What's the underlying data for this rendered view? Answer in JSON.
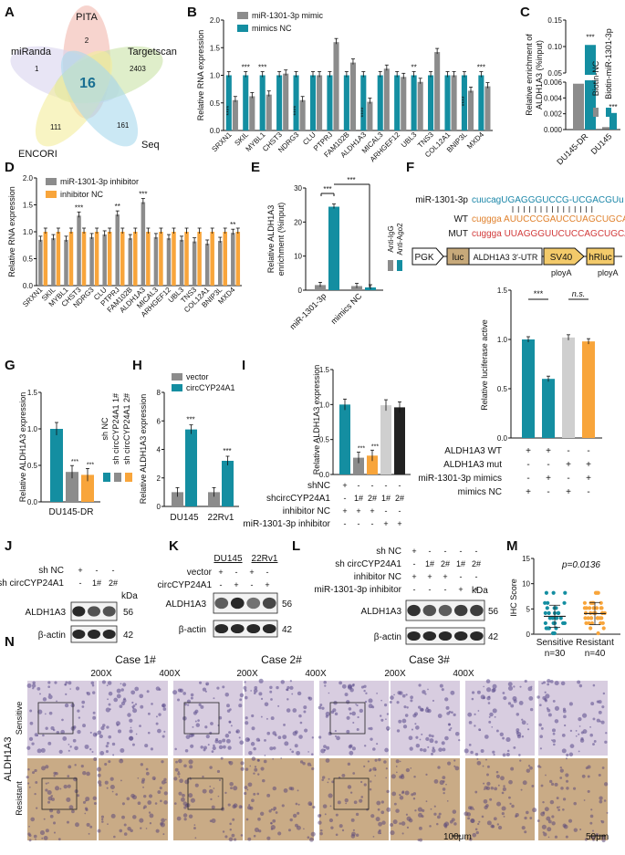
{
  "panels": {
    "A": "A",
    "B": "B",
    "C": "C",
    "D": "D",
    "E": "E",
    "F": "F",
    "G": "G",
    "H": "H",
    "I": "I",
    "J": "J",
    "K": "K",
    "L": "L",
    "M": "M",
    "N": "N"
  },
  "colors": {
    "gray": "#8c8c8c",
    "teal": "#148ea1",
    "orange": "#f8a53b",
    "lightgray": "#cfcfcf",
    "pink": "#e9c1c6",
    "venn_pita": "#f2b8ae",
    "venn_miranda": "#d9d4ee",
    "venn_targetscan": "#c9e3a6",
    "venn_encori": "#f4ec9b",
    "venn_seq": "#a8d9ec"
  },
  "venn": {
    "sets": [
      "PITA",
      "miRanda",
      "Targetscan",
      "ENCORI",
      "Seq"
    ],
    "counts": {
      "pita_only": "2",
      "miranda_only": "1",
      "targetscan_only": "2403",
      "encori_only": "111",
      "seq_only": "161",
      "center": "16"
    }
  },
  "chart_data": [
    {
      "id": "B",
      "type": "bar",
      "ylabel": "Relative RNA expression",
      "ylim": [
        0,
        2.0
      ],
      "yticks": [
        "0.0",
        "0.5",
        "1.0",
        "1.5",
        "2.0"
      ],
      "categories": [
        "SRXN1",
        "SKIL",
        "MYBL1",
        "CHST3",
        "NDRG3",
        "CLU",
        "PTPRJ",
        "FAM102B",
        "ALDH1A3",
        "MICAL3",
        "ARHGEF12",
        "UBL3",
        "TNS3",
        "COL12A1",
        "BNIP3L",
        "MXD4"
      ],
      "series": [
        {
          "name": "mimics NC",
          "values": [
            1,
            1,
            1,
            1,
            1,
            1,
            1,
            1,
            1,
            1,
            1,
            1,
            1,
            1,
            1,
            1
          ]
        },
        {
          "name": "miR-1301-3p mimic",
          "values": [
            0.55,
            0.62,
            0.65,
            1.03,
            0.55,
            1.0,
            1.6,
            1.23,
            0.52,
            1.12,
            0.97,
            0.88,
            1.42,
            1.0,
            0.72,
            0.8
          ]
        }
      ],
      "sig": [
        "****",
        "***",
        "***",
        "",
        "****",
        "",
        "",
        "",
        "****",
        "",
        "",
        "**",
        "",
        "",
        "****",
        "***"
      ]
    },
    {
      "id": "C",
      "type": "bar",
      "ylabel": "Relative enrichment of ALDH1A3 (%input)",
      "yticks": [
        "0.000",
        "0.002",
        "0.004",
        "0.006",
        "0.05",
        "0.10",
        "0.15"
      ],
      "categories": [
        "DU145-DR",
        "DU145"
      ],
      "series": [
        {
          "name": "Biotin-NC",
          "values": [
            0.0058,
            0.0002
          ]
        },
        {
          "name": "Biotin-miR-1301-3p",
          "values": [
            0.103,
            0.0021
          ]
        }
      ],
      "sig": [
        "***",
        "***"
      ]
    },
    {
      "id": "D",
      "type": "bar",
      "ylabel": "Relative RNA expression",
      "ylim": [
        0,
        2.0
      ],
      "yticks": [
        "0.0",
        "0.5",
        "1.0",
        "1.5",
        "2.0"
      ],
      "categories": [
        "SRXN1",
        "SKIL",
        "MYBL1",
        "CHST3",
        "NDRG3",
        "CLU",
        "PTPRJ",
        "FAM102B",
        "ALDH1A3",
        "MICAL3",
        "ARHGEF12",
        "UBL3",
        "TNS3",
        "COL12A1",
        "BNIP3L",
        "MXD4"
      ],
      "series": [
        {
          "name": "inhibitor NC",
          "values": [
            1,
            1,
            1,
            1,
            1,
            1,
            1,
            1,
            1,
            1,
            1,
            1,
            1,
            1,
            1,
            1
          ]
        },
        {
          "name": "miR-1301-3p inhibitor",
          "values": [
            0.85,
            0.88,
            0.85,
            1.3,
            0.9,
            0.95,
            1.32,
            0.88,
            1.55,
            0.9,
            0.88,
            0.85,
            0.82,
            0.78,
            0.83,
            0.98
          ]
        }
      ],
      "sig": [
        "",
        "",
        "",
        "***",
        "",
        "",
        "**",
        "",
        "***",
        "",
        "",
        "",
        "",
        "",
        "",
        "**"
      ]
    },
    {
      "id": "E",
      "type": "bar",
      "ylabel": "Relative ALDH1A3 enrichment (%input)",
      "ylim": [
        0,
        30
      ],
      "yticks": [
        "0",
        "10",
        "20",
        "30"
      ],
      "categories": [
        "miR-1301-3p",
        "mimics NC"
      ],
      "series": [
        {
          "name": "Anti-IgG",
          "values": [
            1.5,
            1.2
          ]
        },
        {
          "name": "Anti-Ago2",
          "values": [
            24.5,
            0.8
          ]
        }
      ],
      "sig": [
        "***",
        "***"
      ]
    },
    {
      "id": "F",
      "type": "bar",
      "ylabel": "Relative luciferase active",
      "ylim": [
        0,
        1.5
      ],
      "yticks": [
        "0.0",
        "0.5",
        "1.0",
        "1.5"
      ],
      "values": [
        1.0,
        0.6,
        1.02,
        0.98
      ],
      "sig": [
        "***",
        "n.s."
      ],
      "rows": [
        {
          "label": "ALDH1A3 WT",
          "marks": [
            "+",
            "+",
            "-",
            "-"
          ]
        },
        {
          "label": "ALDH1A3 mut",
          "marks": [
            "-",
            "-",
            "+",
            "+"
          ]
        },
        {
          "label": "miR-1301-3p mimics",
          "marks": [
            "-",
            "+",
            "-",
            "+"
          ]
        },
        {
          "label": "mimics NC",
          "marks": [
            "+",
            "-",
            "+",
            "-"
          ]
        }
      ]
    },
    {
      "id": "G",
      "type": "bar",
      "ylabel": "Relative ALDH1A3 expression",
      "ylim": [
        0,
        1.5
      ],
      "yticks": [
        "0.0",
        "0.5",
        "1.0",
        "1.5"
      ],
      "categories": [
        "DU145-DR"
      ],
      "series": [
        {
          "name": "sh NC",
          "values": [
            1.0
          ]
        },
        {
          "name": "sh circCYP24A1 1#",
          "values": [
            0.41
          ]
        },
        {
          "name": "sh circCYP24A1 2#",
          "values": [
            0.37
          ]
        }
      ],
      "sig": [
        "",
        "***",
        "***"
      ]
    },
    {
      "id": "H",
      "type": "bar",
      "ylabel": "Relative ALDH1A3 expression",
      "ylim": [
        0,
        8
      ],
      "yticks": [
        "0",
        "2",
        "4",
        "6",
        "8"
      ],
      "categories": [
        "DU145",
        "22Rv1"
      ],
      "series": [
        {
          "name": "vector",
          "values": [
            1.0,
            1.0
          ]
        },
        {
          "name": "circCYP24A1",
          "values": [
            5.4,
            3.2
          ]
        }
      ],
      "sig": [
        "***",
        "***"
      ]
    },
    {
      "id": "I",
      "type": "bar",
      "ylabel": "Relative ALDH1A3 expression",
      "ylim": [
        0,
        1.5
      ],
      "yticks": [
        "0.0",
        "0.5",
        "1.0",
        "1.5"
      ],
      "values": [
        1.0,
        0.24,
        0.27,
        0.99,
        0.96
      ],
      "sig": [
        "",
        "***",
        "***",
        "",
        ""
      ],
      "rows": [
        {
          "label": "shNC",
          "marks": [
            "+",
            "-",
            "-",
            "-",
            "-"
          ]
        },
        {
          "label": "shcircCYP24A1",
          "marks": [
            "-",
            "1#",
            "2#",
            "1#",
            "2#"
          ]
        },
        {
          "label": "inhibitor NC",
          "marks": [
            "+",
            "+",
            "+",
            "-",
            "-"
          ]
        },
        {
          "label": "miR-1301-3p inhibitor",
          "marks": [
            "-",
            "-",
            "-",
            "+",
            "+"
          ]
        }
      ]
    },
    {
      "id": "M",
      "type": "scatter",
      "ylabel": "IHC Score",
      "ylim": [
        0,
        15
      ],
      "yticks": [
        "0",
        "5",
        "10",
        "15"
      ],
      "pvalue": "p=0.0136",
      "categories": [
        "Sensitive",
        "Resistant"
      ],
      "ns": [
        "n=30",
        "n=40"
      ]
    }
  ],
  "seq": {
    "mir_label": "miR-1301-3p",
    "wt_label": "WT",
    "mut_label": "MUT",
    "mir_seq": "cuucagUGAGGGUCCG-UCGACGUu",
    "wt_seq": "cuggga AUUCCCGAUCCUAGCUGCA ga",
    "mut_seq": "cuggga UUAGGGUUCUCCAGCUGCA ga",
    "construct": [
      "PGK",
      "luc",
      "ALDH1A3 3′-UTR",
      "SV40",
      "hRluc"
    ],
    "polyA": "ployA"
  },
  "blots": {
    "J": {
      "rows": [
        {
          "label": "sh NC",
          "marks": [
            "+",
            "-",
            "-"
          ]
        },
        {
          "label": "sh circCYP24A1",
          "marks": [
            "-",
            "1#",
            "2#"
          ]
        }
      ],
      "bands": [
        {
          "name": "ALDH1A3",
          "kda": "56"
        },
        {
          "name": "β-actin",
          "kda": "42"
        }
      ],
      "kda": "kDa"
    },
    "K": {
      "lines": [
        "DU145",
        "22Rv1"
      ],
      "rows": [
        {
          "label": "vector",
          "marks": [
            "+",
            "-",
            "+",
            "-"
          ]
        },
        {
          "label": "circCYP24A1",
          "marks": [
            "-",
            "+",
            "-",
            "+"
          ]
        }
      ],
      "bands": [
        {
          "name": "ALDH1A3",
          "kda": "56"
        },
        {
          "name": "β-actin",
          "kda": "42"
        }
      ],
      "kda": "kDa"
    },
    "L": {
      "rows": [
        {
          "label": "sh NC",
          "marks": [
            "+",
            "-",
            "-",
            "-",
            "-"
          ]
        },
        {
          "label": "sh circCYP24A1",
          "marks": [
            "-",
            "1#",
            "2#",
            "1#",
            "2#"
          ]
        },
        {
          "label": "inhibitor NC",
          "marks": [
            "+",
            "+",
            "+",
            "-",
            "-"
          ]
        },
        {
          "label": "miR-1301-3p inhibitor",
          "marks": [
            "-",
            "-",
            "-",
            "+",
            "+"
          ]
        }
      ],
      "bands": [
        {
          "name": "ALDH1A3",
          "kda": "56"
        },
        {
          "name": "β-actin",
          "kda": "42"
        }
      ],
      "kda": "kDa"
    }
  },
  "histology": {
    "cases": [
      "Case 1#",
      "Case 2#",
      "Case 3#"
    ],
    "mags": [
      "200X",
      "400X"
    ],
    "rows": [
      "Sensitive",
      "Resistant"
    ],
    "marker": "ALDH1A3",
    "scale1": "100μm",
    "scale2": "50μm"
  }
}
